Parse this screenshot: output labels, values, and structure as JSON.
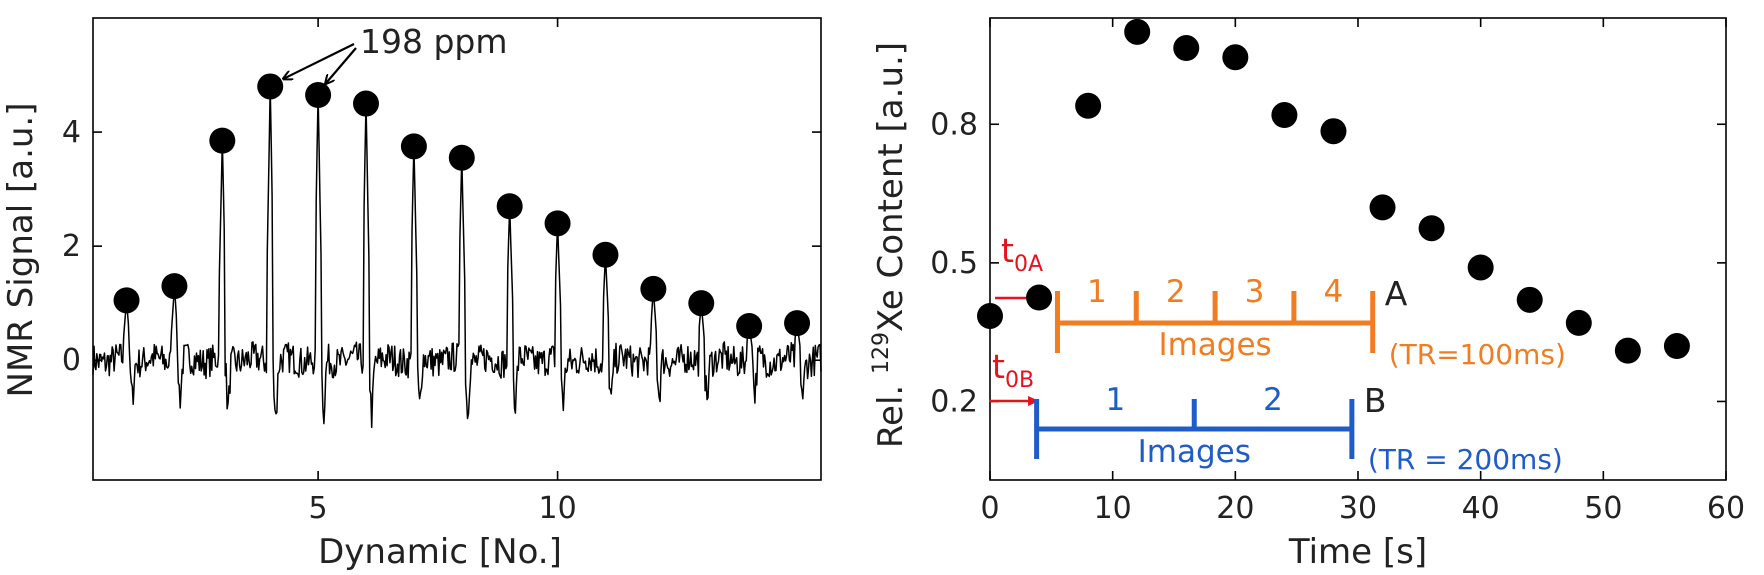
{
  "chart_data": [
    {
      "type": "line",
      "title": "",
      "xlabel": "Dynamic [No.]",
      "ylabel": "NMR Signal [a.u.]",
      "xlim": [
        0.3,
        15.5
      ],
      "ylim": [
        -2.1,
        6.0
      ],
      "xticks": [
        5,
        10
      ],
      "yticks": [
        0,
        2,
        4
      ],
      "xtick_labels": [
        "5",
        "10"
      ],
      "ytick_labels": [
        "0",
        "2",
        "4"
      ],
      "grid": false,
      "series": [
        {
          "name": "peaks",
          "marker": "circle",
          "color": "#000000",
          "x": [
            1,
            2,
            3,
            4,
            5,
            6,
            7,
            8,
            9,
            10,
            11,
            12,
            13,
            14,
            15
          ],
          "values": [
            1.05,
            1.3,
            3.85,
            4.8,
            4.65,
            4.5,
            3.75,
            3.55,
            2.7,
            2.4,
            1.85,
            1.25,
            1.0,
            0.6,
            0.65
          ]
        }
      ],
      "annotation": {
        "text": "198 ppm",
        "points_to": [
          4,
          5
        ]
      }
    },
    {
      "type": "scatter",
      "title": "",
      "xlabel": "Time [s]",
      "ylabel_prefix": "Rel. ",
      "ylabel_super": "129",
      "ylabel_suffix": "Xe Content [a.u.]",
      "xlim": [
        0,
        60
      ],
      "ylim": [
        0.03,
        1.03
      ],
      "xticks": [
        0,
        10,
        20,
        30,
        40,
        50,
        60
      ],
      "yticks": [
        0.2,
        0.5,
        0.8
      ],
      "xtick_labels": [
        "0",
        "10",
        "20",
        "30",
        "40",
        "50",
        "60"
      ],
      "ytick_labels": [
        "0.2",
        "0.5",
        "0.8"
      ],
      "grid": false,
      "series": [
        {
          "name": "xe",
          "marker": "circle",
          "color": "#000000",
          "x": [
            0,
            4,
            8,
            12,
            16,
            20,
            24,
            28,
            32,
            36,
            40,
            44,
            48,
            52,
            56
          ],
          "values": [
            0.385,
            0.425,
            0.84,
            1.0,
            0.965,
            0.945,
            0.82,
            0.785,
            0.62,
            0.575,
            0.49,
            0.42,
            0.37,
            0.31,
            0.32
          ]
        }
      ],
      "annotations": {
        "t0A": {
          "base": "t",
          "sub": "0A",
          "color": "#e6131d",
          "x": 4
        },
        "t0B": {
          "base": "t",
          "sub": "0B",
          "color": "#e6131d",
          "x": 4
        },
        "A": {
          "letter": "A",
          "tr": "(TR=100ms)",
          "caption": "Images",
          "color": "#f07d22",
          "x_start": 5.5,
          "x_end": 31.2,
          "numbers": [
            "1",
            "2",
            "3",
            "4"
          ]
        },
        "B": {
          "letter": "B",
          "tr": "(TR = 200ms)",
          "caption": "Images",
          "color": "#1e5cc9",
          "x_start": 3.8,
          "x_end": 29.5,
          "numbers": [
            "1",
            "2"
          ]
        }
      }
    }
  ]
}
